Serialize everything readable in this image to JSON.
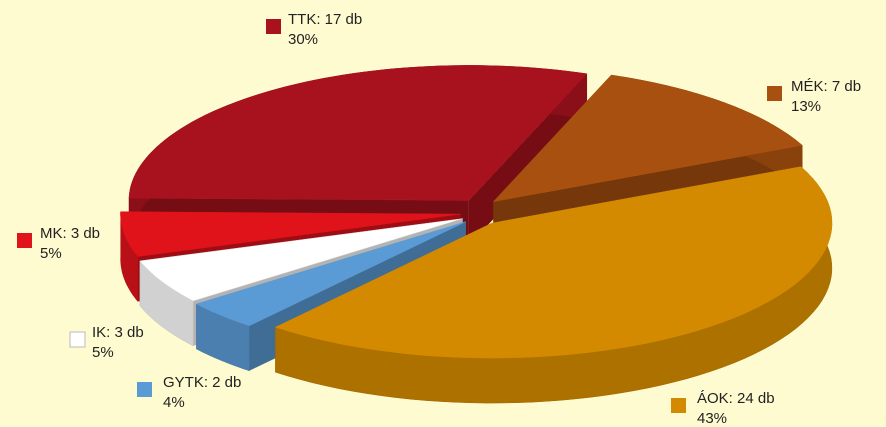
{
  "chart_data": {
    "type": "pie3d",
    "values": [
      17,
      7,
      24,
      2,
      3,
      3
    ],
    "value_labels": [
      "TTK: 17 db",
      "MÉK: 7 db",
      "ÁOK: 24 db",
      "GYTK: 2 db",
      "IK: 3 db",
      "MK: 3 db"
    ],
    "shares": [
      30,
      13,
      43,
      4,
      5,
      5
    ],
    "share_labels": [
      "30%",
      "13%",
      "43%",
      "4%",
      "5%",
      "5%"
    ],
    "colors": [
      "#a8121e",
      "#a8500f",
      "#d38a00",
      "#5b9bd5",
      "#ffffff",
      "#e0131b"
    ]
  }
}
